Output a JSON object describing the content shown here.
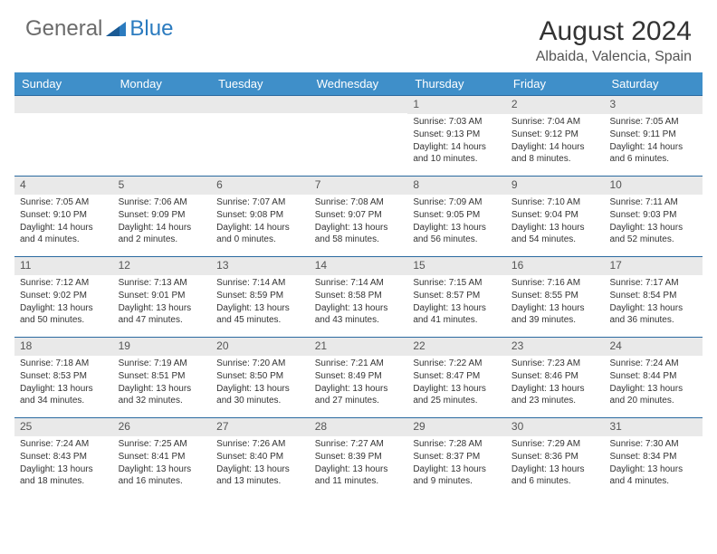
{
  "logo": {
    "general": "General",
    "blue": "Blue"
  },
  "title": "August 2024",
  "location": "Albaida, Valencia, Spain",
  "colors": {
    "header_bg": "#3f8fc9",
    "header_text": "#ffffff",
    "row_border": "#2b6aa0",
    "daynum_bg": "#e9e9e9",
    "body_text": "#333333",
    "logo_gray": "#6b6b6b",
    "logo_blue": "#2b7bbf"
  },
  "day_names": [
    "Sunday",
    "Monday",
    "Tuesday",
    "Wednesday",
    "Thursday",
    "Friday",
    "Saturday"
  ],
  "calendar": {
    "first_weekday_index": 4,
    "fontsize_details": 10,
    "fontsize_daynum": 12
  },
  "weeks": [
    [
      null,
      null,
      null,
      null,
      {
        "n": "1",
        "sunrise": "7:03 AM",
        "sunset": "9:13 PM",
        "dh": "14",
        "dm": "10"
      },
      {
        "n": "2",
        "sunrise": "7:04 AM",
        "sunset": "9:12 PM",
        "dh": "14",
        "dm": "8"
      },
      {
        "n": "3",
        "sunrise": "7:05 AM",
        "sunset": "9:11 PM",
        "dh": "14",
        "dm": "6"
      }
    ],
    [
      {
        "n": "4",
        "sunrise": "7:05 AM",
        "sunset": "9:10 PM",
        "dh": "14",
        "dm": "4"
      },
      {
        "n": "5",
        "sunrise": "7:06 AM",
        "sunset": "9:09 PM",
        "dh": "14",
        "dm": "2"
      },
      {
        "n": "6",
        "sunrise": "7:07 AM",
        "sunset": "9:08 PM",
        "dh": "14",
        "dm": "0"
      },
      {
        "n": "7",
        "sunrise": "7:08 AM",
        "sunset": "9:07 PM",
        "dh": "13",
        "dm": "58"
      },
      {
        "n": "8",
        "sunrise": "7:09 AM",
        "sunset": "9:05 PM",
        "dh": "13",
        "dm": "56"
      },
      {
        "n": "9",
        "sunrise": "7:10 AM",
        "sunset": "9:04 PM",
        "dh": "13",
        "dm": "54"
      },
      {
        "n": "10",
        "sunrise": "7:11 AM",
        "sunset": "9:03 PM",
        "dh": "13",
        "dm": "52"
      }
    ],
    [
      {
        "n": "11",
        "sunrise": "7:12 AM",
        "sunset": "9:02 PM",
        "dh": "13",
        "dm": "50"
      },
      {
        "n": "12",
        "sunrise": "7:13 AM",
        "sunset": "9:01 PM",
        "dh": "13",
        "dm": "47"
      },
      {
        "n": "13",
        "sunrise": "7:14 AM",
        "sunset": "8:59 PM",
        "dh": "13",
        "dm": "45"
      },
      {
        "n": "14",
        "sunrise": "7:14 AM",
        "sunset": "8:58 PM",
        "dh": "13",
        "dm": "43"
      },
      {
        "n": "15",
        "sunrise": "7:15 AM",
        "sunset": "8:57 PM",
        "dh": "13",
        "dm": "41"
      },
      {
        "n": "16",
        "sunrise": "7:16 AM",
        "sunset": "8:55 PM",
        "dh": "13",
        "dm": "39"
      },
      {
        "n": "17",
        "sunrise": "7:17 AM",
        "sunset": "8:54 PM",
        "dh": "13",
        "dm": "36"
      }
    ],
    [
      {
        "n": "18",
        "sunrise": "7:18 AM",
        "sunset": "8:53 PM",
        "dh": "13",
        "dm": "34"
      },
      {
        "n": "19",
        "sunrise": "7:19 AM",
        "sunset": "8:51 PM",
        "dh": "13",
        "dm": "32"
      },
      {
        "n": "20",
        "sunrise": "7:20 AM",
        "sunset": "8:50 PM",
        "dh": "13",
        "dm": "30"
      },
      {
        "n": "21",
        "sunrise": "7:21 AM",
        "sunset": "8:49 PM",
        "dh": "13",
        "dm": "27"
      },
      {
        "n": "22",
        "sunrise": "7:22 AM",
        "sunset": "8:47 PM",
        "dh": "13",
        "dm": "25"
      },
      {
        "n": "23",
        "sunrise": "7:23 AM",
        "sunset": "8:46 PM",
        "dh": "13",
        "dm": "23"
      },
      {
        "n": "24",
        "sunrise": "7:24 AM",
        "sunset": "8:44 PM",
        "dh": "13",
        "dm": "20"
      }
    ],
    [
      {
        "n": "25",
        "sunrise": "7:24 AM",
        "sunset": "8:43 PM",
        "dh": "13",
        "dm": "18"
      },
      {
        "n": "26",
        "sunrise": "7:25 AM",
        "sunset": "8:41 PM",
        "dh": "13",
        "dm": "16"
      },
      {
        "n": "27",
        "sunrise": "7:26 AM",
        "sunset": "8:40 PM",
        "dh": "13",
        "dm": "13"
      },
      {
        "n": "28",
        "sunrise": "7:27 AM",
        "sunset": "8:39 PM",
        "dh": "13",
        "dm": "11"
      },
      {
        "n": "29",
        "sunrise": "7:28 AM",
        "sunset": "8:37 PM",
        "dh": "13",
        "dm": "9"
      },
      {
        "n": "30",
        "sunrise": "7:29 AM",
        "sunset": "8:36 PM",
        "dh": "13",
        "dm": "6"
      },
      {
        "n": "31",
        "sunrise": "7:30 AM",
        "sunset": "8:34 PM",
        "dh": "13",
        "dm": "4"
      }
    ]
  ],
  "labels": {
    "sunrise": "Sunrise:",
    "sunset": "Sunset:",
    "daylight": "Daylight:",
    "hours_and": "hours and",
    "minutes": "minutes."
  }
}
